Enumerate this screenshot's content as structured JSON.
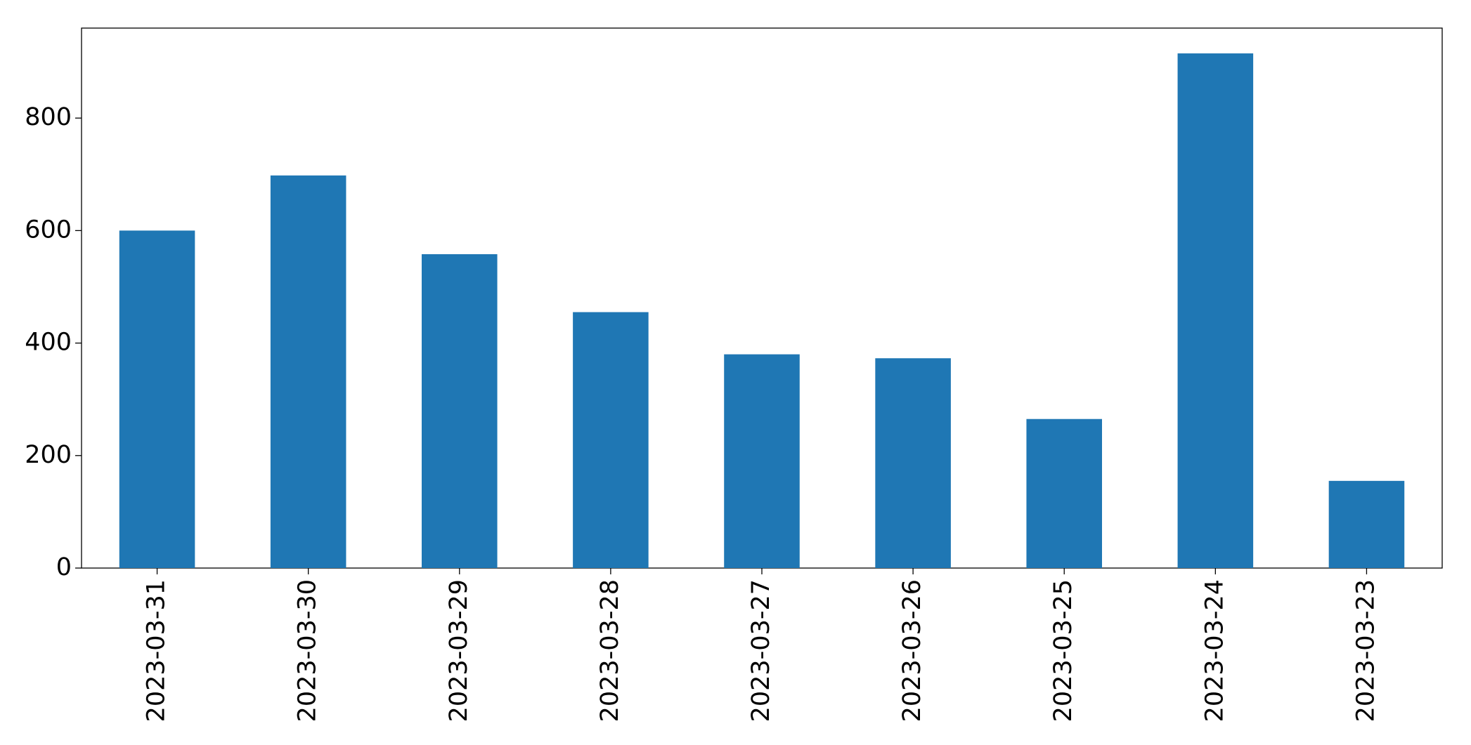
{
  "chart_data": {
    "type": "bar",
    "categories": [
      "2023-03-31",
      "2023-03-30",
      "2023-03-29",
      "2023-03-28",
      "2023-03-27",
      "2023-03-26",
      "2023-03-25",
      "2023-03-24",
      "2023-03-23"
    ],
    "values": [
      600,
      698,
      558,
      455,
      380,
      373,
      265,
      915,
      155
    ],
    "color": "#1f77b4",
    "ylim": [
      0,
      960
    ],
    "yticks": [
      0,
      200,
      400,
      600,
      800
    ],
    "grid": false
  }
}
